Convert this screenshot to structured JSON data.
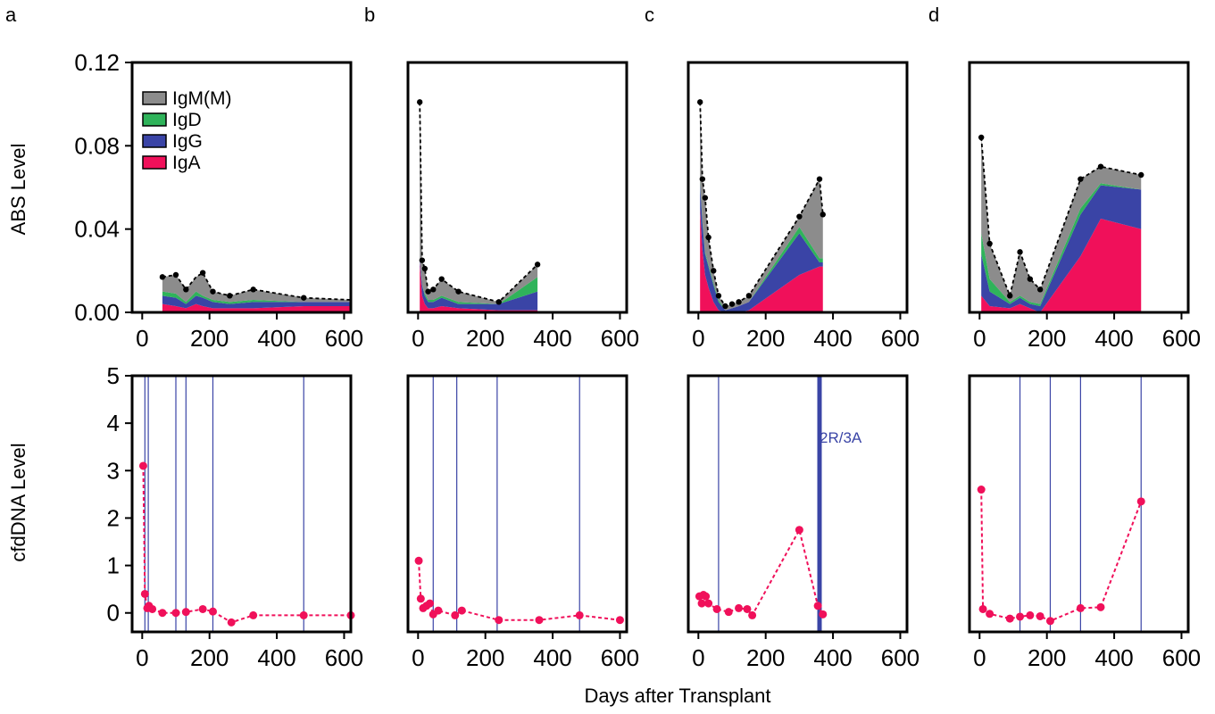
{
  "figure": {
    "xlabel": "Days after Transplant",
    "colors": {
      "IgM(M)": "#8c8c8c",
      "IgD": "#2fb35a",
      "IgG": "#3a44a6",
      "IgA": "#f0105a",
      "cfdna": "#f0105a",
      "rejection_line": "#3a44a6"
    }
  },
  "chart_data": [
    {
      "panel": "a",
      "type": "area",
      "row": "ABS",
      "ylabel": "ABS Level",
      "xlim": [
        -30,
        620
      ],
      "ylim": [
        0,
        0.12
      ],
      "xticks": [
        "0",
        "200",
        "400",
        "600"
      ],
      "yticks": [
        "0.00",
        "0.04",
        "0.08",
        "0.12"
      ],
      "legend": {
        "position": "top-left",
        "entries": [
          "IgM(M)",
          "IgD",
          "IgG",
          "IgA"
        ]
      },
      "x": [
        60,
        100,
        130,
        160,
        180,
        210,
        260,
        330,
        480,
        620
      ],
      "series": [
        {
          "name": "IgA",
          "values": [
            0.004,
            0.003,
            0.002,
            0.004,
            0.003,
            0.002,
            0.002,
            0.002,
            0.003,
            0.003
          ]
        },
        {
          "name": "IgG",
          "values": [
            0.004,
            0.004,
            0.002,
            0.004,
            0.004,
            0.003,
            0.002,
            0.003,
            0.002,
            0.002
          ]
        },
        {
          "name": "IgD",
          "values": [
            0.002,
            0.002,
            0.001,
            0.002,
            0.001,
            0.001,
            0.001,
            0.001,
            0.0,
            0.0
          ]
        },
        {
          "name": "IgM(M)",
          "values": [
            0.007,
            0.009,
            0.006,
            0.007,
            0.011,
            0.004,
            0.003,
            0.005,
            0.002,
            0.001
          ]
        }
      ],
      "total_markers": [
        60,
        100,
        130,
        180,
        210,
        260,
        330,
        480
      ]
    },
    {
      "panel": "b",
      "type": "area",
      "row": "ABS",
      "xlim": [
        -30,
        620
      ],
      "ylim": [
        0,
        0.12
      ],
      "xticks": [
        "0",
        "200",
        "400",
        "600"
      ],
      "x": [
        5,
        12,
        20,
        30,
        45,
        70,
        120,
        240,
        355
      ],
      "series": [
        {
          "name": "IgA",
          "values": [
            0.024,
            0.008,
            0.004,
            0.002,
            0.002,
            0.003,
            0.002,
            0.001,
            0.001
          ]
        },
        {
          "name": "IgG",
          "values": [
            0.002,
            0.005,
            0.004,
            0.003,
            0.003,
            0.004,
            0.002,
            0.003,
            0.009
          ]
        },
        {
          "name": "IgD",
          "values": [
            0.0,
            0.0,
            0.001,
            0.001,
            0.001,
            0.001,
            0.001,
            0.0,
            0.007
          ]
        },
        {
          "name": "IgM(M)",
          "values": [
            0.075,
            0.012,
            0.012,
            0.004,
            0.005,
            0.008,
            0.005,
            0.001,
            0.006
          ]
        }
      ],
      "total_markers": [
        5,
        12,
        20,
        30,
        45,
        70,
        120,
        240,
        355
      ]
    },
    {
      "panel": "c",
      "type": "area",
      "row": "ABS",
      "xlim": [
        -30,
        620
      ],
      "ylim": [
        0,
        0.12
      ],
      "xticks": [
        "0",
        "200",
        "400",
        "600"
      ],
      "x": [
        5,
        12,
        20,
        30,
        45,
        60,
        80,
        100,
        120,
        150,
        300,
        360,
        370
      ],
      "series": [
        {
          "name": "IgA",
          "values": [
            0.05,
            0.03,
            0.018,
            0.012,
            0.005,
            0.001,
            0.0,
            0.0,
            0.0,
            0.001,
            0.018,
            0.022,
            0.022
          ]
        },
        {
          "name": "IgG",
          "values": [
            0.012,
            0.013,
            0.01,
            0.01,
            0.008,
            0.004,
            0.001,
            0.002,
            0.003,
            0.004,
            0.02,
            0.002,
            0.002
          ]
        },
        {
          "name": "IgD",
          "values": [
            0.001,
            0.001,
            0.001,
            0.001,
            0.001,
            0.001,
            0.0,
            0.0,
            0.0,
            0.0,
            0.003,
            0.002,
            0.002
          ]
        },
        {
          "name": "IgM(M)",
          "values": [
            0.038,
            0.02,
            0.026,
            0.013,
            0.006,
            0.002,
            0.002,
            0.002,
            0.002,
            0.003,
            0.005,
            0.038,
            0.021
          ]
        }
      ],
      "total_markers": [
        5,
        12,
        20,
        30,
        45,
        60,
        80,
        100,
        120,
        150,
        300,
        360,
        370
      ]
    },
    {
      "panel": "d",
      "type": "area",
      "row": "ABS",
      "xlim": [
        -30,
        620
      ],
      "ylim": [
        0,
        0.12
      ],
      "xticks": [
        "0",
        "200",
        "400",
        "600"
      ],
      "x": [
        5,
        30,
        90,
        120,
        150,
        180,
        300,
        360,
        480
      ],
      "series": [
        {
          "name": "IgA",
          "values": [
            0.008,
            0.003,
            0.002,
            0.004,
            0.002,
            0.0,
            0.027,
            0.045,
            0.04
          ]
        },
        {
          "name": "IgG",
          "values": [
            0.02,
            0.007,
            0.002,
            0.003,
            0.002,
            0.003,
            0.02,
            0.016,
            0.019
          ]
        },
        {
          "name": "IgD",
          "values": [
            0.01,
            0.006,
            0.001,
            0.001,
            0.001,
            0.001,
            0.003,
            0.001,
            0.0
          ]
        },
        {
          "name": "IgM(M)",
          "values": [
            0.046,
            0.017,
            0.003,
            0.021,
            0.011,
            0.007,
            0.014,
            0.008,
            0.007
          ]
        }
      ],
      "total_markers": [
        5,
        30,
        90,
        120,
        150,
        180,
        300,
        360,
        480
      ]
    },
    {
      "panel": "a",
      "type": "line",
      "row": "cfDNA",
      "ylabel": "cfdDNA Level",
      "xlim": [
        -30,
        620
      ],
      "ylim": [
        -0.4,
        5
      ],
      "xticks": [
        "0",
        "200",
        "400",
        "600"
      ],
      "yticks": [
        "0",
        "1",
        "2",
        "3",
        "4",
        "5"
      ],
      "x": [
        3,
        8,
        15,
        20,
        30,
        60,
        100,
        130,
        180,
        210,
        265,
        330,
        480,
        620
      ],
      "values": [
        3.1,
        0.4,
        0.1,
        0.15,
        0.08,
        0.0,
        0.0,
        0.02,
        0.08,
        0.03,
        -0.2,
        -0.05,
        -0.05,
        -0.05
      ],
      "biopsies": [
        8,
        18,
        100,
        130,
        210,
        480
      ]
    },
    {
      "panel": "b",
      "type": "line",
      "row": "cfDNA",
      "xlim": [
        -30,
        620
      ],
      "ylim": [
        -0.4,
        5
      ],
      "xticks": [
        "0",
        "200",
        "400",
        "600"
      ],
      "x": [
        2,
        8,
        15,
        25,
        35,
        45,
        60,
        110,
        130,
        240,
        360,
        480,
        600
      ],
      "values": [
        1.1,
        0.3,
        0.1,
        0.15,
        0.2,
        -0.03,
        0.05,
        -0.05,
        0.05,
        -0.15,
        -0.15,
        -0.05,
        -0.15
      ],
      "biopsies": [
        45,
        115,
        235,
        480
      ]
    },
    {
      "panel": "c",
      "type": "line",
      "row": "cfDNA",
      "xlim": [
        -30,
        620
      ],
      "ylim": [
        -0.4,
        5
      ],
      "xticks": [
        "0",
        "200",
        "400",
        "600"
      ],
      "x": [
        3,
        10,
        15,
        22,
        30,
        55,
        90,
        120,
        145,
        160,
        300,
        355,
        370
      ],
      "values": [
        0.35,
        0.2,
        0.38,
        0.35,
        0.2,
        0.08,
        0.02,
        0.1,
        0.08,
        -0.05,
        1.75,
        0.15,
        -0.03
      ],
      "biopsies": [
        60
      ],
      "rejection": {
        "x": 360,
        "label": "2R/3A"
      }
    },
    {
      "panel": "d",
      "type": "line",
      "row": "cfDNA",
      "xlim": [
        -30,
        620
      ],
      "ylim": [
        -0.4,
        5
      ],
      "xticks": [
        "0",
        "200",
        "400",
        "600"
      ],
      "x": [
        5,
        10,
        30,
        90,
        120,
        150,
        180,
        210,
        300,
        360,
        480
      ],
      "values": [
        2.6,
        0.08,
        -0.02,
        -0.12,
        -0.08,
        -0.05,
        -0.07,
        -0.17,
        0.1,
        0.12,
        2.35
      ],
      "biopsies": [
        120,
        210,
        300,
        480
      ]
    }
  ]
}
